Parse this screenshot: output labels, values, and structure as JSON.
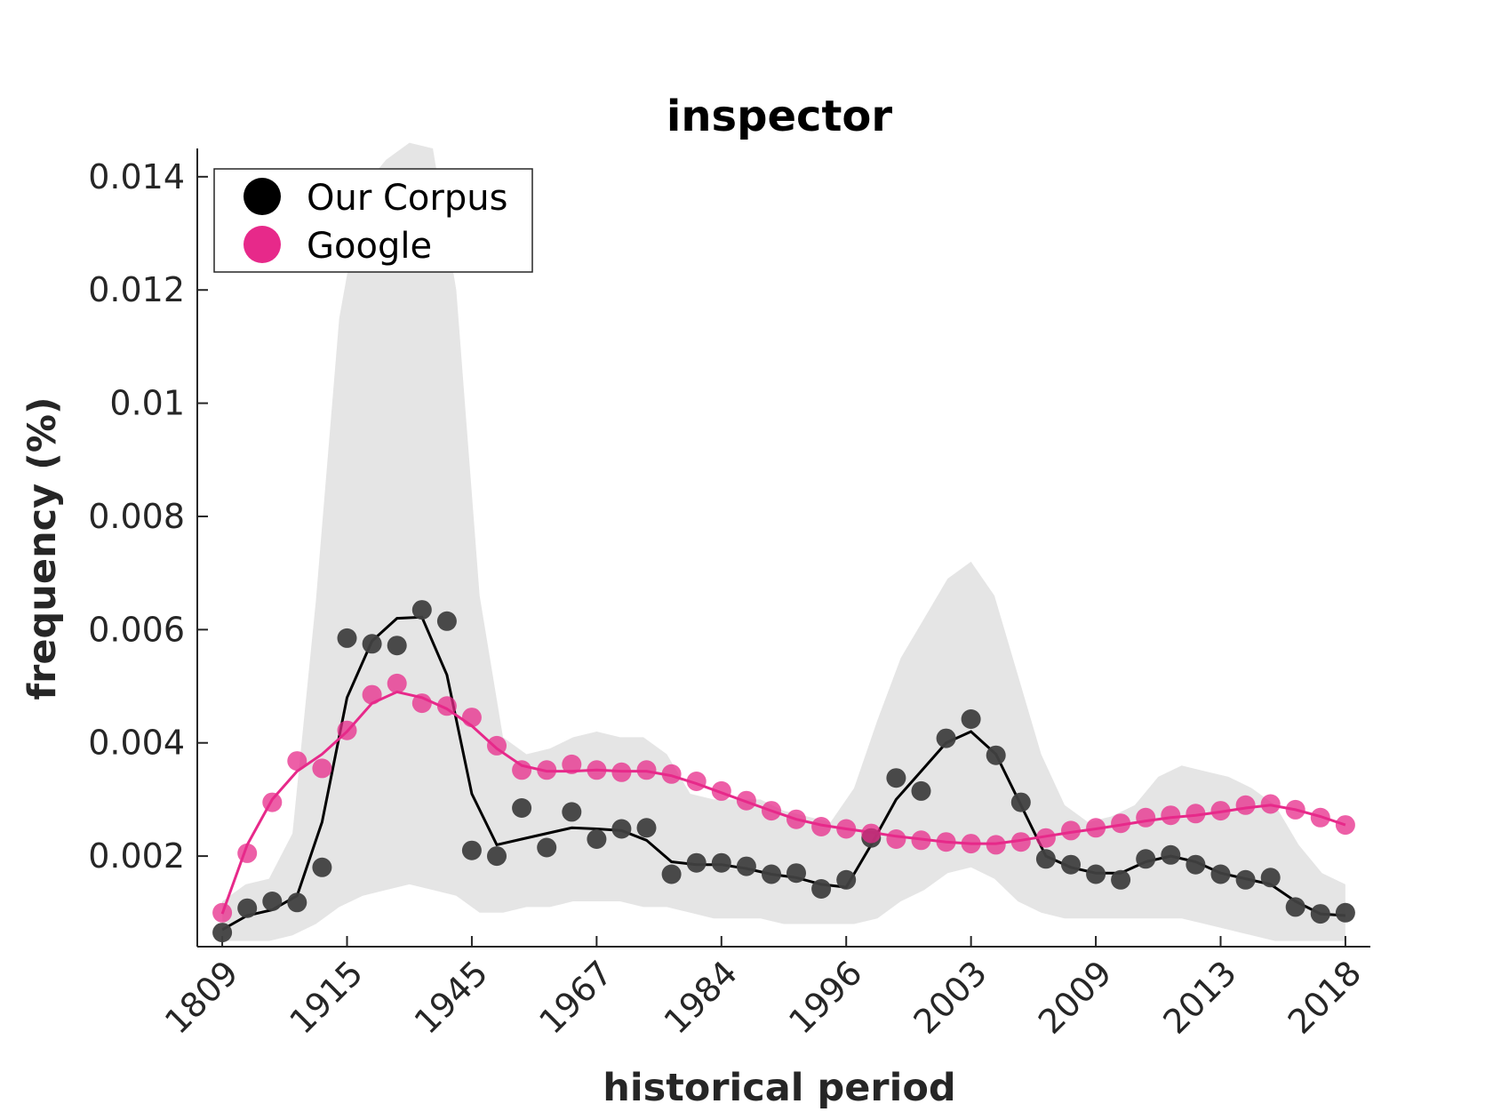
{
  "chart_data": {
    "type": "line",
    "title": "inspector",
    "xlabel": "historical period",
    "ylabel": "frequency (%)",
    "ylim": [
      0.0004,
      0.0145
    ],
    "y_ticks": [
      0.002,
      0.004,
      0.006,
      0.008,
      0.01,
      0.012,
      0.014
    ],
    "y_tick_labels": [
      "0.002",
      "0.004",
      "0.006",
      "0.008",
      "0.01",
      "0.012",
      "0.014"
    ],
    "x_tick_positions": [
      1,
      6,
      11,
      16,
      21,
      26,
      31,
      36,
      41,
      46
    ],
    "x_tick_labels": [
      "1809",
      "1915",
      "1945",
      "1967",
      "1984",
      "1996",
      "2003",
      "2009",
      "2013",
      "2018"
    ],
    "xlim": [
      0,
      47
    ],
    "legend_position": "top-left",
    "band": {
      "name": "range",
      "color": "#e5e5e5",
      "upper": [
        0.0012,
        0.0015,
        0.0016,
        0.0024,
        0.0065,
        0.0115,
        0.0138,
        0.0143,
        0.0146,
        0.0145,
        0.012,
        0.0066,
        0.0041,
        0.0038,
        0.0039,
        0.0041,
        0.0042,
        0.0041,
        0.0041,
        0.0038,
        0.0031,
        0.003,
        0.003,
        0.003,
        0.0028,
        0.0027,
        0.0026,
        0.0032,
        0.0044,
        0.0055,
        0.0062,
        0.0069,
        0.0072,
        0.0066,
        0.0052,
        0.0038,
        0.0029,
        0.0026,
        0.0027,
        0.0029,
        0.0034,
        0.0036,
        0.0035,
        0.0034,
        0.0032,
        0.0029,
        0.0022,
        0.0017,
        0.0015
      ],
      "lower": [
        0.0005,
        0.0005,
        0.0005,
        0.0006,
        0.0008,
        0.0011,
        0.0013,
        0.0014,
        0.0015,
        0.0014,
        0.0013,
        0.001,
        0.001,
        0.0011,
        0.0011,
        0.0012,
        0.0012,
        0.0012,
        0.0011,
        0.0011,
        0.001,
        0.0009,
        0.0009,
        0.0009,
        0.0008,
        0.0008,
        0.0008,
        0.0008,
        0.0009,
        0.0012,
        0.0014,
        0.0017,
        0.0018,
        0.0016,
        0.0012,
        0.001,
        0.0009,
        0.0009,
        0.0009,
        0.0009,
        0.0009,
        0.0009,
        0.0008,
        0.0007,
        0.0006,
        0.0005,
        0.0005,
        0.0005,
        0.0005
      ],
      "band_x": [
        1,
        2,
        3,
        4,
        5,
        6,
        7,
        8,
        9,
        10,
        11,
        12,
        13,
        14,
        15,
        16,
        17,
        18,
        19,
        20,
        21,
        22,
        23,
        24,
        25,
        26,
        27,
        28,
        29,
        30,
        31,
        32,
        33,
        34,
        35,
        36,
        37,
        38,
        39,
        40,
        41,
        42,
        43,
        44,
        45,
        46,
        47,
        48,
        49
      ]
    },
    "series": [
      {
        "name": "Our Corpus",
        "color": "#000000",
        "marker_color": "#404040",
        "points": [
          0.00065,
          0.00108,
          0.0012,
          0.00118,
          0.0018,
          0.00585,
          0.00575,
          0.00572,
          0.00635,
          0.00615,
          0.0021,
          0.002,
          0.00285,
          0.00215,
          0.00278,
          0.0023,
          0.00248,
          0.0025,
          0.00168,
          0.00188,
          0.00188,
          0.00182,
          0.00168,
          0.0017,
          0.00142,
          0.00158,
          0.00232,
          0.00338,
          0.00315,
          0.00408,
          0.00442,
          0.00378,
          0.00295,
          0.00195,
          0.00185,
          0.00168,
          0.00158,
          0.00195,
          0.00202,
          0.00185,
          0.00168,
          0.00158,
          0.00162,
          0.0011,
          0.00098,
          0.001
        ],
        "line": [
          0.0007,
          0.00095,
          0.00105,
          0.0013,
          0.0026,
          0.0048,
          0.0058,
          0.0062,
          0.00622,
          0.0052,
          0.0031,
          0.0022,
          0.0023,
          0.0024,
          0.0025,
          0.00248,
          0.00245,
          0.00228,
          0.0019,
          0.00185,
          0.00185,
          0.00178,
          0.00168,
          0.00162,
          0.0015,
          0.00145,
          0.0022,
          0.003,
          0.0035,
          0.004,
          0.0042,
          0.0038,
          0.0029,
          0.002,
          0.0018,
          0.0017,
          0.0017,
          0.0019,
          0.002,
          0.0019,
          0.0017,
          0.0016,
          0.0015,
          0.0012,
          0.00098,
          0.00095
        ]
      },
      {
        "name": "Google",
        "color": "#e7298a",
        "marker_color": "#e7298a",
        "points": [
          0.001,
          0.00205,
          0.00295,
          0.00368,
          0.00355,
          0.00422,
          0.00485,
          0.00505,
          0.0047,
          0.00465,
          0.00445,
          0.00395,
          0.00352,
          0.00352,
          0.00362,
          0.00352,
          0.00348,
          0.00352,
          0.00345,
          0.00332,
          0.00315,
          0.00298,
          0.0028,
          0.00265,
          0.00252,
          0.00248,
          0.0024,
          0.0023,
          0.00228,
          0.00225,
          0.00222,
          0.0022,
          0.00225,
          0.00232,
          0.00245,
          0.0025,
          0.00258,
          0.00268,
          0.00272,
          0.00275,
          0.0028,
          0.0029,
          0.00292,
          0.00282,
          0.00268,
          0.00255
        ],
        "line": [
          0.00098,
          0.0022,
          0.003,
          0.0035,
          0.0038,
          0.0042,
          0.0047,
          0.0049,
          0.0048,
          0.0046,
          0.0043,
          0.0039,
          0.0036,
          0.0035,
          0.0035,
          0.00352,
          0.0035,
          0.0035,
          0.00342,
          0.00328,
          0.00312,
          0.00296,
          0.0028,
          0.00265,
          0.00255,
          0.00248,
          0.00242,
          0.00235,
          0.0023,
          0.00225,
          0.00222,
          0.00222,
          0.00228,
          0.00235,
          0.00242,
          0.00248,
          0.00255,
          0.00262,
          0.00268,
          0.00272,
          0.00278,
          0.00285,
          0.0029,
          0.00282,
          0.0027,
          0.00255
        ]
      }
    ]
  }
}
